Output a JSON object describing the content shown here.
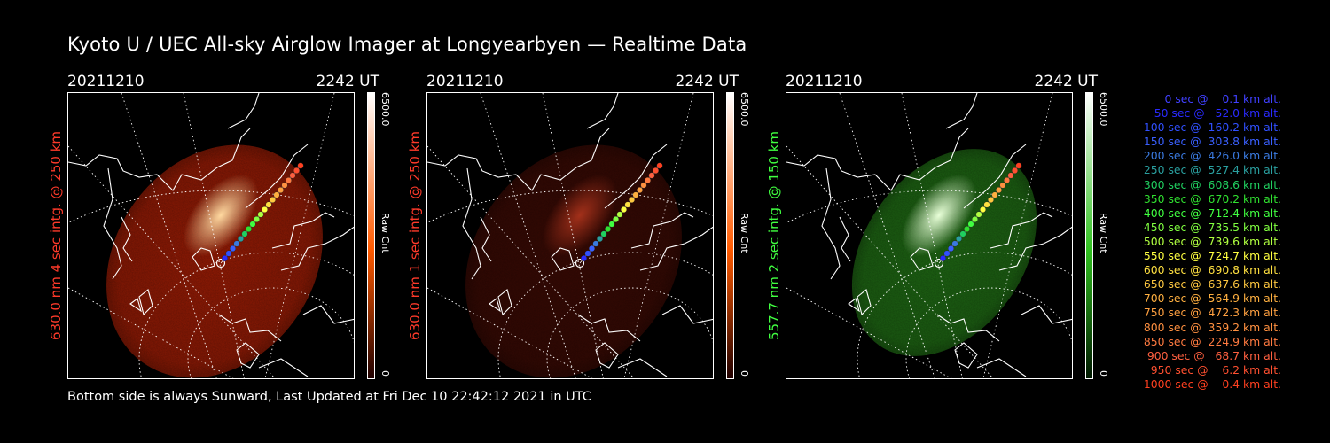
{
  "title": "Kyoto U / UEC All-sky Airglow Imager at Longyearbyen — Realtime Data",
  "footer": "Bottom side is always Sunward, Last Updated at Fri Dec 10 22:42:12 2021 in UTC",
  "panels": [
    {
      "date": "20211210",
      "time": "2242 UT",
      "ylabel": "630.0 nm 4 sec intg. @ 250 km",
      "label_color": "#ff3a2a",
      "cbar_max": "6500.0",
      "cbar_min": "0",
      "cbar_unit": "Raw Cnt",
      "fill_color": "#9a1c05",
      "glow_color": "#ffd9a0",
      "cbar_top_color": "#ffffff",
      "cbar_mid_color": "#ff5a00",
      "cbar_bot_color": "#200000"
    },
    {
      "date": "20211210",
      "time": "2242 UT",
      "ylabel": "630.0 nm 1 sec intg. @ 250 km",
      "label_color": "#ff3a2a",
      "cbar_max": "6500.0",
      "cbar_min": "0",
      "cbar_unit": "Raw Cnt",
      "fill_color": "#3a0a04",
      "glow_color": "#a2301a",
      "cbar_top_color": "#ffffff",
      "cbar_mid_color": "#ff5a00",
      "cbar_bot_color": "#200000"
    },
    {
      "date": "20211210",
      "time": "2242 UT",
      "ylabel": "557.7 nm 2 sec intg. @ 150 km",
      "label_color": "#40ff40",
      "cbar_max": "6500.0",
      "cbar_min": "0",
      "cbar_unit": "Raw Cnt",
      "fill_color": "#1f6a14",
      "glow_color": "#e8ffd8",
      "cbar_top_color": "#ffffff",
      "cbar_mid_color": "#30c020",
      "cbar_bot_color": "#001800"
    }
  ],
  "legend": [
    {
      "text": "   0 sec @    0.1 km alt.",
      "color": "#4040ff"
    },
    {
      "text": "  50 sec @   52.0 km alt.",
      "color": "#2a2aff"
    },
    {
      "text": " 100 sec @  160.2 km alt.",
      "color": "#3050ff"
    },
    {
      "text": " 150 sec @  303.8 km alt.",
      "color": "#3a60ff"
    },
    {
      "text": " 200 sec @  426.0 km alt.",
      "color": "#3a7ae0"
    },
    {
      "text": " 250 sec @  527.4 km alt.",
      "color": "#2aa0a0"
    },
    {
      "text": " 300 sec @  608.6 km alt.",
      "color": "#20d060"
    },
    {
      "text": " 350 sec @  670.2 km alt.",
      "color": "#30e030"
    },
    {
      "text": " 400 sec @  712.4 km alt.",
      "color": "#40ff40"
    },
    {
      "text": " 450 sec @  735.5 km alt.",
      "color": "#80ff40"
    },
    {
      "text": " 500 sec @  739.6 km alt.",
      "color": "#b0ff40"
    },
    {
      "text": " 550 sec @  724.7 km alt.",
      "color": "#ffff40"
    },
    {
      "text": " 600 sec @  690.8 km alt.",
      "color": "#ffe040"
    },
    {
      "text": " 650 sec @  637.6 km alt.",
      "color": "#ffc840"
    },
    {
      "text": " 700 sec @  564.9 km alt.",
      "color": "#ffb040"
    },
    {
      "text": " 750 sec @  472.3 km alt.",
      "color": "#ffa040"
    },
    {
      "text": " 800 sec @  359.2 km alt.",
      "color": "#ff9040"
    },
    {
      "text": " 850 sec @  224.9 km alt.",
      "color": "#ff7a40"
    },
    {
      "text": " 900 sec @   68.7 km alt.",
      "color": "#ff6040"
    },
    {
      "text": " 950 sec @    6.2 km alt.",
      "color": "#ff5030"
    },
    {
      "text": "1000 sec @    0.4 km alt.",
      "color": "#ff4020"
    }
  ]
}
